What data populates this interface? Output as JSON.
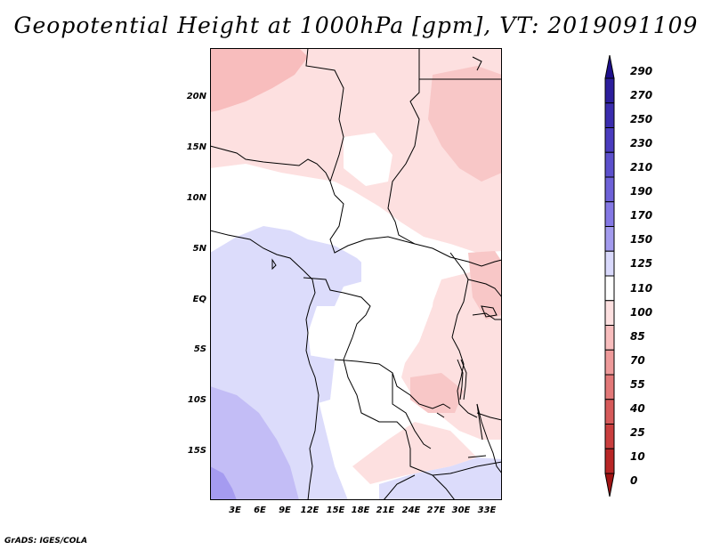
{
  "title": "Geopotential Height at 1000hPa [gpm], VT: 2019091109",
  "credit": "GrADS: IGES/COLA",
  "map": {
    "lat_labels": [
      "20N",
      "15N",
      "10N",
      "5N",
      "EQ",
      "5S",
      "10S",
      "15S"
    ],
    "lon_labels": [
      "3E",
      "6E",
      "9E",
      "12E",
      "15E",
      "18E",
      "21E",
      "24E",
      "27E",
      "30E",
      "33E"
    ]
  },
  "colorbar": {
    "labels": [
      "290",
      "270",
      "250",
      "230",
      "210",
      "190",
      "170",
      "150",
      "125",
      "110",
      "100",
      "85",
      "70",
      "55",
      "40",
      "25",
      "10",
      "0"
    ],
    "colors": [
      "#1e0f8c",
      "#2c1e9c",
      "#3a2cae",
      "#4a3cbe",
      "#5c50cc",
      "#6e62d8",
      "#8478e4",
      "#a39bee",
      "#d9d9fc",
      "#ffffff",
      "#fde0e0",
      "#f8bdbd",
      "#ee9a9a",
      "#e27878",
      "#d65a5a",
      "#c93e3e",
      "#b82626",
      "#a01414"
    ]
  }
}
